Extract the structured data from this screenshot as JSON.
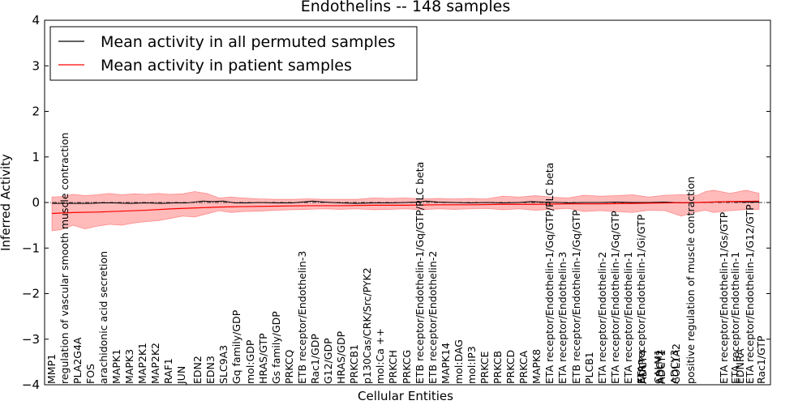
{
  "chart_data": {
    "type": "line",
    "title": "Endothelins -- 148 samples",
    "xlabel": "Cellular Entities",
    "ylabel": "Inferred Activity",
    "ylim": [
      -4,
      4
    ],
    "yticks": [
      -4,
      -3,
      -2,
      -1,
      0,
      1,
      2,
      3,
      4
    ],
    "ytick_labels": [
      "−4",
      "−3",
      "−2",
      "−1",
      "0",
      "1",
      "2",
      "3",
      "4"
    ],
    "legend": {
      "placement": "top-left",
      "entries": [
        {
          "label": "Mean activity in all permuted samples",
          "color": "#000000"
        },
        {
          "label": "Mean activity in patient samples",
          "color": "#ff0000"
        }
      ]
    },
    "categories": [
      "MMP1",
      "regulation of vascular smooth muscle contraction",
      "PLA2G4A",
      "FOS",
      "arachidonic acid secretion",
      "MAPK1",
      "MAPK3",
      "MAP2K1",
      "MAP2K2",
      "RAF1",
      "JUN",
      "EDN2",
      "EDN3",
      "SLC9A3",
      "Gq family/GDP",
      "mol:GDP",
      "HRAS/GTP",
      "Gs family/GDP",
      "PRKCQ",
      "ETB receptor/Endothelin-3",
      "Rac1/GDP",
      "G12/GDP",
      "HRAS/GDP",
      "PRKCB1",
      "p130Cas/CRK/Src/PYK2",
      "mol:Ca ++",
      "PRKCH",
      "PRKCG",
      "ETB receptor/Endothelin-1/Gq/GTP/PLC beta",
      "ETB receptor/Endothelin-2",
      "MAPK14",
      "mol:DAG",
      "mol:IP3",
      "PRKCE",
      "PRKCB",
      "PRKCD",
      "PRKCA",
      "MAPK8",
      "ETA receptor/Endothelin-1/Gq/GTP/PLC beta",
      "ETA receptor/Endothelin-3",
      "ETB receptor/Endothelin-1/Gq/GTP",
      "PLCB1",
      "ETA receptor/Endothelin-2",
      "ETA receptor/Endothelin-1/Gq/GTP",
      "ETA receptor/Endothelin-1",
      "ETA receptor/Endothelin-1/Gi/GTP",
      "ADCY4",
      "CALM1",
      "FARP",
      "ADCY2",
      "ADCY1",
      "ADCY3",
      "COL1A2",
      "positive regulation of muscle contraction",
      "ETA receptor/Endothelin-1/Gs/GTP",
      "ETA receptor/Endothelin-1",
      "EDNRA",
      "ETA receptor/Endothelin-1/G12/GTP",
      "Rac1/GTP"
    ],
    "label_x": [
      64,
      80,
      96,
      112,
      128,
      144,
      160,
      176,
      192,
      208,
      224,
      244,
      260,
      276,
      292,
      309,
      325,
      341,
      357,
      373,
      389,
      405,
      421,
      437,
      453,
      469,
      485,
      502,
      518,
      534,
      550,
      566,
      582,
      598,
      614,
      630,
      646,
      662,
      678,
      694,
      711,
      727,
      743,
      759,
      775,
      791,
      793,
      812,
      792,
      814,
      816,
      832,
      834,
      852,
      893,
      907,
      913,
      925,
      939
    ],
    "permuted_mean": {
      "x": [
        64,
        90,
        110,
        125,
        140,
        160,
        180,
        200,
        215,
        230,
        240,
        250,
        262,
        275,
        290,
        305,
        320,
        340,
        360,
        372,
        385,
        400,
        420,
        440,
        460,
        480,
        500,
        515,
        525,
        540,
        560,
        580,
        600,
        620,
        640,
        655,
        670,
        690,
        700,
        720,
        740,
        760,
        780,
        800,
        820,
        840,
        860,
        880,
        900,
        920,
        936
      ],
      "values": [
        -0.02,
        -0.02,
        -0.02,
        -0.01,
        -0.01,
        -0.02,
        -0.01,
        -0.02,
        -0.01,
        -0.01,
        0.01,
        0.03,
        0.02,
        0.03,
        -0.01,
        -0.01,
        0.0,
        -0.01,
        -0.01,
        0.01,
        0.03,
        0.01,
        -0.01,
        -0.02,
        -0.01,
        -0.01,
        0.0,
        0.01,
        0.03,
        0.01,
        0.0,
        -0.01,
        0.0,
        -0.01,
        0.0,
        0.02,
        0.01,
        0.0,
        -0.01,
        0.0,
        0.0,
        0.01,
        0.0,
        0.0,
        0.01,
        -0.01,
        0.0,
        0.01,
        0.02,
        0.01,
        0.01
      ]
    },
    "patient_mean": {
      "x": [
        64,
        90,
        120,
        150,
        180,
        210,
        240,
        270,
        300,
        340,
        380,
        420,
        460,
        500,
        540,
        580,
        620,
        660,
        700,
        740,
        780,
        820,
        860,
        900,
        936
      ],
      "values": [
        -0.24,
        -0.22,
        -0.21,
        -0.19,
        -0.17,
        -0.14,
        -0.12,
        -0.1,
        -0.09,
        -0.08,
        -0.07,
        -0.07,
        -0.06,
        -0.06,
        -0.05,
        -0.05,
        -0.04,
        -0.04,
        -0.03,
        -0.03,
        -0.02,
        -0.01,
        0.0,
        0.02,
        0.03
      ]
    },
    "patient_band": {
      "x": [
        64,
        75,
        90,
        105,
        120,
        135,
        150,
        165,
        180,
        195,
        210,
        225,
        240,
        255,
        270,
        285,
        300,
        320,
        340,
        360,
        380,
        400,
        420,
        440,
        460,
        480,
        500,
        520,
        540,
        560,
        580,
        600,
        620,
        640,
        660,
        680,
        700,
        720,
        740,
        760,
        780,
        800,
        820,
        840,
        860,
        870,
        880,
        900,
        920,
        936
      ],
      "upper": [
        0.12,
        0.13,
        0.18,
        0.15,
        0.17,
        0.2,
        0.17,
        0.19,
        0.18,
        0.2,
        0.18,
        0.19,
        0.24,
        0.2,
        0.1,
        0.12,
        0.1,
        0.08,
        0.07,
        0.07,
        0.08,
        0.07,
        0.07,
        0.07,
        0.1,
        0.09,
        0.1,
        0.08,
        0.09,
        0.08,
        0.09,
        0.08,
        0.14,
        0.12,
        0.15,
        0.12,
        0.1,
        0.16,
        0.14,
        0.15,
        0.17,
        0.12,
        0.16,
        0.17,
        0.16,
        0.24,
        0.27,
        0.2,
        0.27,
        0.2
      ],
      "lower": [
        -0.62,
        -0.6,
        -0.5,
        -0.58,
        -0.52,
        -0.48,
        -0.5,
        -0.45,
        -0.42,
        -0.4,
        -0.35,
        -0.3,
        -0.32,
        -0.25,
        -0.18,
        -0.22,
        -0.2,
        -0.19,
        -0.17,
        -0.16,
        -0.15,
        -0.14,
        -0.15,
        -0.14,
        -0.16,
        -0.15,
        -0.14,
        -0.16,
        -0.14,
        -0.15,
        -0.14,
        -0.13,
        -0.16,
        -0.14,
        -0.17,
        -0.15,
        -0.13,
        -0.2,
        -0.18,
        -0.2,
        -0.22,
        -0.17,
        -0.18,
        -0.3,
        -0.2,
        -0.17,
        -0.22,
        -0.18,
        -0.15,
        -0.15
      ]
    }
  }
}
